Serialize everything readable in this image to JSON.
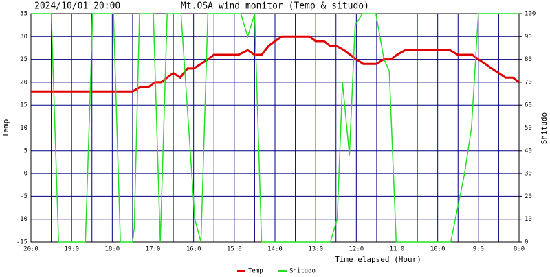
{
  "chart_data": {
    "type": "line",
    "timestamp": "2024/10/01 20:00",
    "title": "Mt.OSA wind monitor (Temp & situdo)",
    "x_label": "Time elapsed (Hour)",
    "y_label": "Temp",
    "y2_label": "Shitudo",
    "xlim": [
      0,
      12
    ],
    "xticks": [
      {
        "value": 0,
        "label": "20:0"
      },
      {
        "value": 1,
        "label": "19:0"
      },
      {
        "value": 2,
        "label": "18:0"
      },
      {
        "value": 3,
        "label": "17:0"
      },
      {
        "value": 4,
        "label": "16:0"
      },
      {
        "value": 5,
        "label": "15:0"
      },
      {
        "value": 6,
        "label": "14:0"
      },
      {
        "value": 7,
        "label": "13:0"
      },
      {
        "value": 8,
        "label": "12:0"
      },
      {
        "value": 9,
        "label": "11:0"
      },
      {
        "value": 10,
        "label": "10:0"
      },
      {
        "value": 11,
        "label": "9:0"
      },
      {
        "value": 12,
        "label": "8:0"
      }
    ],
    "xminorticks": [
      0.5,
      1.5,
      2.5,
      3.5,
      4.5,
      5.5,
      6.5,
      7.5,
      8.5,
      9.5,
      10.5,
      11.5
    ],
    "ylim": [
      -15,
      35
    ],
    "yticks": [
      -15,
      -10,
      -5,
      0,
      5,
      10,
      15,
      20,
      25,
      30,
      35
    ],
    "y2lim": [
      0,
      100
    ],
    "y2ticks": [
      0,
      10,
      20,
      30,
      40,
      50,
      60,
      70,
      80,
      90,
      100
    ],
    "grid": true,
    "legend": "bottom",
    "series": [
      {
        "name": "Temp",
        "color": "#e00000",
        "x": [
          0,
          2.5,
          2.7,
          2.9,
          3.05,
          3.2,
          3.5,
          3.67,
          3.85,
          4.0,
          4.18,
          4.35,
          4.5,
          5.1,
          5.33,
          5.5,
          5.67,
          5.85,
          6.0,
          6.17,
          6.85,
          7.0,
          7.2,
          7.35,
          7.5,
          7.7,
          7.85,
          8.0,
          8.17,
          8.5,
          8.67,
          8.85,
          9.0,
          9.2,
          10.3,
          10.5,
          10.85,
          11.0,
          11.17,
          11.33,
          11.5,
          11.67,
          11.85,
          12.0
        ],
        "values": [
          18,
          18,
          19,
          19,
          20,
          20,
          22,
          21,
          23,
          23,
          24,
          25,
          26,
          26,
          27,
          26,
          26,
          28,
          29,
          30,
          30,
          29,
          29,
          28,
          28,
          27,
          26,
          25,
          24,
          24,
          25,
          25,
          26,
          27,
          27,
          26,
          26,
          25,
          24,
          23,
          22,
          21,
          21,
          20
        ]
      },
      {
        "name": "Shitudo",
        "color": "#22e022",
        "axis": "y2",
        "x": [
          0,
          0.5,
          0.68,
          1.34,
          1.52,
          2.03,
          2.2,
          2.5,
          2.54,
          2.67,
          3.01,
          3.18,
          3.35,
          3.69,
          4.03,
          4.18,
          4.35,
          5.16,
          5.33,
          5.5,
          5.67,
          7.36,
          7.53,
          7.66,
          7.83,
          7.97,
          8.15,
          8.48,
          8.68,
          8.81,
          8.98,
          10.32,
          10.66,
          10.83,
          11.0,
          12.0
        ],
        "values": [
          100,
          100,
          0,
          0,
          100,
          100,
          0,
          0,
          6,
          100,
          100,
          0,
          100,
          100,
          10,
          0,
          100,
          100,
          90,
          100,
          0,
          0,
          10,
          70,
          38,
          95,
          100,
          100,
          80,
          75,
          0,
          0,
          30,
          50,
          100,
          100
        ]
      }
    ]
  }
}
